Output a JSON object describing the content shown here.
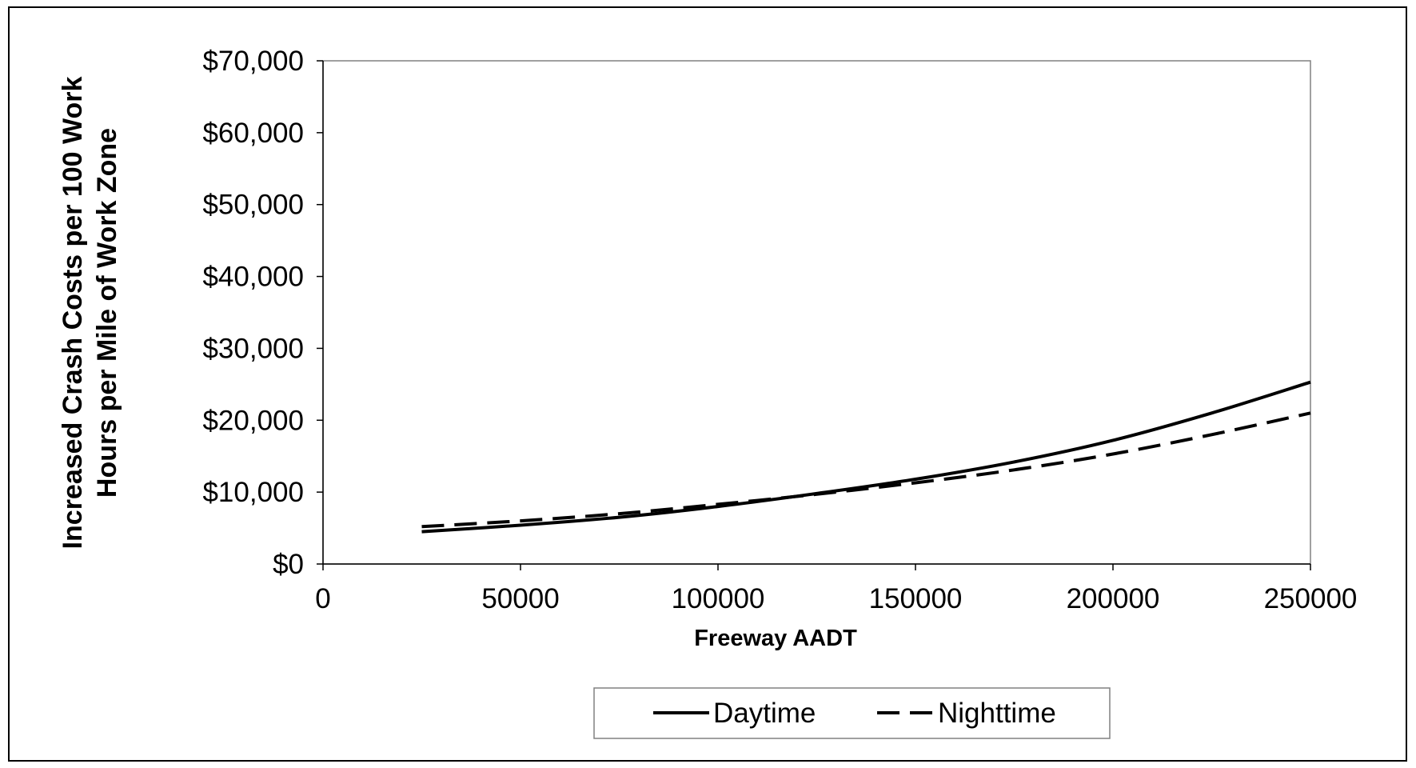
{
  "chart_data": {
    "type": "line",
    "title": "",
    "xlabel": "Freeway AADT",
    "ylabel_lines": [
      "Increased Crash Costs per 100 Work",
      "Hours per Mile of Work Zone"
    ],
    "xlim": [
      0,
      250000
    ],
    "ylim": [
      0,
      70000
    ],
    "x_ticks": [
      0,
      50000,
      100000,
      150000,
      200000,
      250000
    ],
    "x_tick_labels": [
      "0",
      "50000",
      "100000",
      "150000",
      "200000",
      "250000"
    ],
    "y_ticks": [
      0,
      10000,
      20000,
      30000,
      40000,
      50000,
      60000,
      70000
    ],
    "y_tick_labels": [
      "$0",
      "$10,000",
      "$20,000",
      "$30,000",
      "$40,000",
      "$50,000",
      "$60,000",
      "$70,000"
    ],
    "grid": false,
    "legend_position": "bottom",
    "series": [
      {
        "name": "Daytime",
        "style": "solid",
        "x": [
          25000,
          50000,
          75000,
          100000,
          125000,
          150000,
          175000,
          200000,
          225000,
          250000
        ],
        "y": [
          4500,
          5400,
          6500,
          8000,
          9800,
          11800,
          14200,
          17200,
          21000,
          25300
        ]
      },
      {
        "name": "Nighttime",
        "style": "dashed",
        "x": [
          25000,
          50000,
          75000,
          100000,
          125000,
          150000,
          175000,
          200000,
          225000,
          250000
        ],
        "y": [
          5200,
          6000,
          7000,
          8300,
          9700,
          11300,
          13100,
          15300,
          18000,
          21000
        ]
      }
    ]
  },
  "colors": {
    "line": "#000000",
    "background": "#ffffff"
  }
}
